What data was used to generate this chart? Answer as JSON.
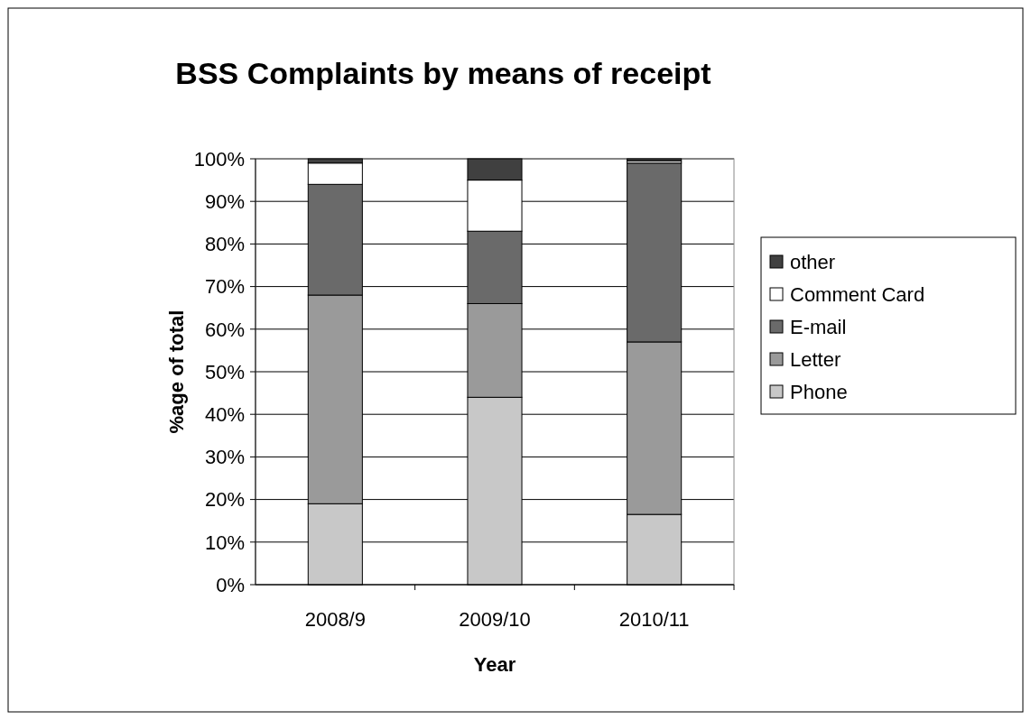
{
  "chart_data": {
    "type": "bar",
    "stacked": true,
    "title": "BSS Complaints by means of receipt",
    "xlabel": "Year",
    "ylabel": "%age of total",
    "categories": [
      "2008/9",
      "2009/10",
      "2010/11"
    ],
    "series": [
      {
        "name": "Phone",
        "color": "#c8c8c8",
        "values": [
          19,
          44,
          16.5
        ]
      },
      {
        "name": "Letter",
        "color": "#9a9a9a",
        "values": [
          49,
          22,
          40.5
        ]
      },
      {
        "name": "E-mail",
        "color": "#6a6a6a",
        "values": [
          26,
          17,
          42
        ]
      },
      {
        "name": "Comment Card",
        "color": "#ffffff",
        "values": [
          5,
          12,
          0.5
        ]
      },
      {
        "name": "other",
        "color": "#404040",
        "values": [
          1,
          5,
          0.5
        ]
      }
    ],
    "ylim": [
      0,
      100
    ],
    "yticks": [
      {
        "value": 0,
        "label": "0%"
      },
      {
        "value": 10,
        "label": "10%"
      },
      {
        "value": 20,
        "label": "20%"
      },
      {
        "value": 30,
        "label": "30%"
      },
      {
        "value": 40,
        "label": "40%"
      },
      {
        "value": 50,
        "label": "50%"
      },
      {
        "value": 60,
        "label": "60%"
      },
      {
        "value": 70,
        "label": "70%"
      },
      {
        "value": 80,
        "label": "80%"
      },
      {
        "value": 90,
        "label": "90%"
      },
      {
        "value": 100,
        "label": "100%"
      }
    ],
    "grid": "y",
    "legend": "right"
  }
}
